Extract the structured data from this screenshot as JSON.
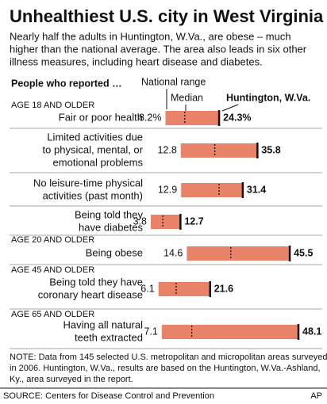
{
  "chart_data": {
    "type": "range",
    "title": "Unhealthiest U.S. city in West Virginia",
    "subtitle": [
      "Nearly half the adults in Huntington, W.Va., are obese – much",
      "higher than the national average. The area also leads in six other",
      "illness measures, including heart disease and diabetes."
    ],
    "header": "People who reported …",
    "legend": {
      "range": "National range",
      "median": "Median",
      "highlight": "Huntington, W.Va."
    },
    "groups": [
      "AGE 18 AND OLDER",
      null,
      null,
      null,
      "AGE 20 AND OLDER",
      "AGE 45 AND OLDER",
      "AGE 65 AND OLDER"
    ],
    "categories": [
      [
        "Fair or poor health"
      ],
      [
        "Limited activities due",
        "to physical, mental, or",
        "emotional problems"
      ],
      [
        "No leisure-time physical",
        "activities (past month)"
      ],
      [
        "Being told they",
        "have diabetes"
      ],
      [
        "Being obese"
      ],
      [
        "Being told they have",
        "coronary heart disease"
      ],
      [
        "Having all natural",
        "teeth extracted"
      ]
    ],
    "low": [
      8.2,
      12.8,
      12.9,
      3.8,
      14.6,
      6.1,
      7.1
    ],
    "low_labels": [
      "8.2%",
      "12.8",
      "12.9",
      "3.8",
      "14.6",
      "6.1",
      "7.1"
    ],
    "median": [
      14,
      23,
      24.3,
      7.4,
      27.8,
      11.4,
      16.1
    ],
    "high": [
      24.3,
      35.8,
      31.4,
      12.7,
      45.5,
      21.6,
      48.1
    ],
    "high_labels": [
      "24.3%",
      "35.8",
      "31.4",
      "12.7",
      "45.5",
      "21.6",
      "48.1"
    ],
    "color": "#e8836a",
    "note": [
      "NOTE: Data from 145 selected U.S. metropolitan and micropolitan areas surveyed",
      "in 2006. Huntington, W.Va., results are based on the Huntington, W.Va.-Ashland,",
      "Ky., area surveyed in the report."
    ],
    "source": "SOURCE: Centers for Disease Control and Prevention",
    "credit": "AP"
  }
}
